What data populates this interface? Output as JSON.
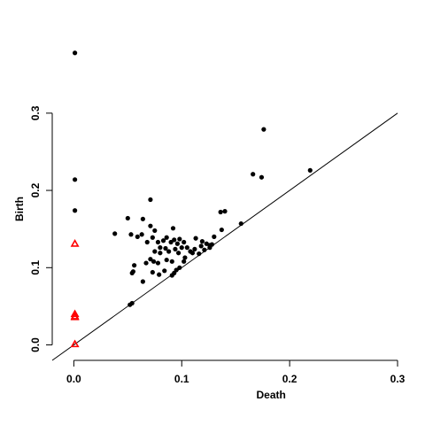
{
  "chart_data": {
    "type": "scatter",
    "title": "",
    "xlabel": "Death",
    "ylabel": "Birth",
    "xlim": [
      -0.02,
      0.3
    ],
    "ylim": [
      -0.02,
      0.38
    ],
    "xticks": [
      0.0,
      0.1,
      0.2,
      0.3
    ],
    "yticks": [
      0.0,
      0.1,
      0.2,
      0.3
    ],
    "xtick_labels": [
      "0.0",
      "0.1",
      "0.2",
      "0.3"
    ],
    "ytick_labels": [
      "0.0",
      "0.1",
      "0.2",
      "0.3"
    ],
    "reference_line": "y = x",
    "grid": false,
    "colors": {
      "dim1": "#000000",
      "dim0": "#ff0000"
    },
    "series": [
      {
        "marker": "filled-circle",
        "color": "#000000",
        "points": [
          [
            0.001,
            0.378
          ],
          [
            0.001,
            0.214
          ],
          [
            0.001,
            0.174
          ],
          [
            0.176,
            0.279
          ],
          [
            0.166,
            0.221
          ],
          [
            0.174,
            0.217
          ],
          [
            0.219,
            0.226
          ],
          [
            0.071,
            0.188
          ],
          [
            0.14,
            0.173
          ],
          [
            0.136,
            0.172
          ],
          [
            0.155,
            0.157
          ],
          [
            0.05,
            0.164
          ],
          [
            0.064,
            0.163
          ],
          [
            0.038,
            0.144
          ],
          [
            0.053,
            0.143
          ],
          [
            0.059,
            0.14
          ],
          [
            0.063,
            0.143
          ],
          [
            0.068,
            0.133
          ],
          [
            0.071,
            0.154
          ],
          [
            0.075,
            0.148
          ],
          [
            0.073,
            0.139
          ],
          [
            0.078,
            0.133
          ],
          [
            0.083,
            0.135
          ],
          [
            0.086,
            0.139
          ],
          [
            0.09,
            0.133
          ],
          [
            0.093,
            0.136
          ],
          [
            0.096,
            0.131
          ],
          [
            0.092,
            0.151
          ],
          [
            0.098,
            0.137
          ],
          [
            0.102,
            0.133
          ],
          [
            0.105,
            0.126
          ],
          [
            0.108,
            0.121
          ],
          [
            0.113,
            0.138
          ],
          [
            0.118,
            0.128
          ],
          [
            0.121,
            0.123
          ],
          [
            0.123,
            0.131
          ],
          [
            0.126,
            0.129
          ],
          [
            0.128,
            0.13
          ],
          [
            0.13,
            0.14
          ],
          [
            0.137,
            0.149
          ],
          [
            0.08,
            0.126
          ],
          [
            0.085,
            0.125
          ],
          [
            0.088,
            0.121
          ],
          [
            0.094,
            0.124
          ],
          [
            0.097,
            0.119
          ],
          [
            0.1,
            0.126
          ],
          [
            0.103,
            0.113
          ],
          [
            0.11,
            0.119
          ],
          [
            0.116,
            0.118
          ],
          [
            0.075,
            0.121
          ],
          [
            0.08,
            0.119
          ],
          [
            0.086,
            0.11
          ],
          [
            0.091,
            0.108
          ],
          [
            0.095,
            0.097
          ],
          [
            0.098,
            0.1
          ],
          [
            0.102,
            0.108
          ],
          [
            0.071,
            0.111
          ],
          [
            0.074,
            0.108
          ],
          [
            0.078,
            0.106
          ],
          [
            0.067,
            0.106
          ],
          [
            0.056,
            0.103
          ],
          [
            0.055,
            0.095
          ],
          [
            0.054,
            0.093
          ],
          [
            0.073,
            0.094
          ],
          [
            0.079,
            0.091
          ],
          [
            0.084,
            0.096
          ],
          [
            0.091,
            0.09
          ],
          [
            0.093,
            0.093
          ],
          [
            0.064,
            0.082
          ],
          [
            0.054,
            0.054
          ],
          [
            0.052,
            0.052
          ],
          [
            0.112,
            0.124
          ],
          [
            0.119,
            0.134
          ],
          [
            0.126,
            0.126
          ]
        ]
      },
      {
        "marker": "open-triangle",
        "color": "#ff0000",
        "points": [
          [
            0.001,
            0.131
          ],
          [
            0.001,
            0.04
          ],
          [
            0.001,
            0.037
          ],
          [
            0.001,
            0.036
          ],
          [
            0.001,
            0.001
          ]
        ]
      }
    ]
  }
}
